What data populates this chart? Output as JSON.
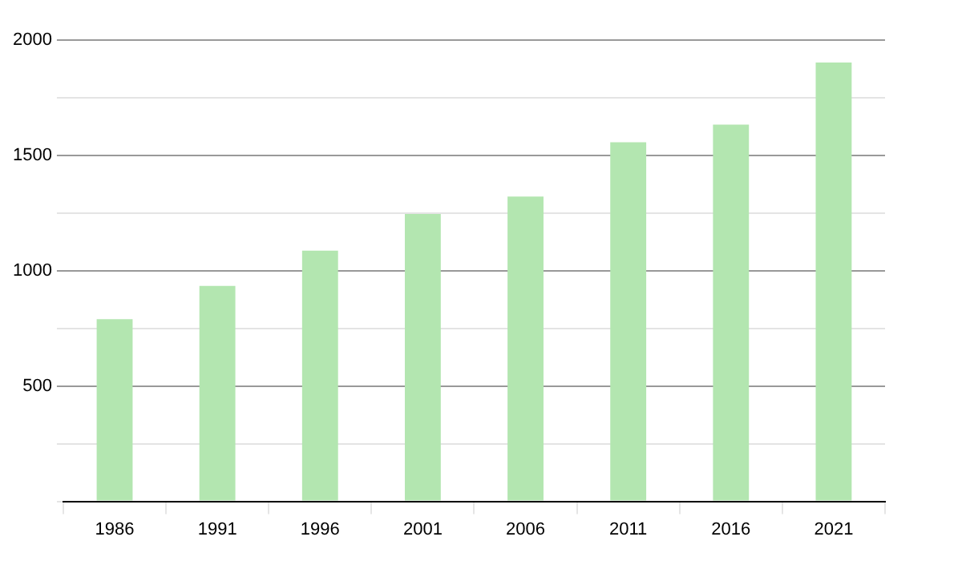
{
  "chart_data": {
    "type": "bar",
    "categories": [
      "1986",
      "1991",
      "1996",
      "2001",
      "2006",
      "2011",
      "2016",
      "2021"
    ],
    "values": [
      790,
      934,
      1087,
      1246,
      1322,
      1557,
      1633,
      1903
    ],
    "color": "#b3e6b0",
    "ylim": [
      0,
      2000
    ],
    "yticks": [
      {
        "value": 0,
        "label": null
      },
      {
        "value": 250,
        "label": null
      },
      500,
      {
        "value": 750,
        "label": null
      },
      1000,
      {
        "value": 1250,
        "label": null
      },
      1500,
      {
        "value": 1750,
        "label": null
      },
      2000
    ],
    "grid": true,
    "legend": false
  }
}
